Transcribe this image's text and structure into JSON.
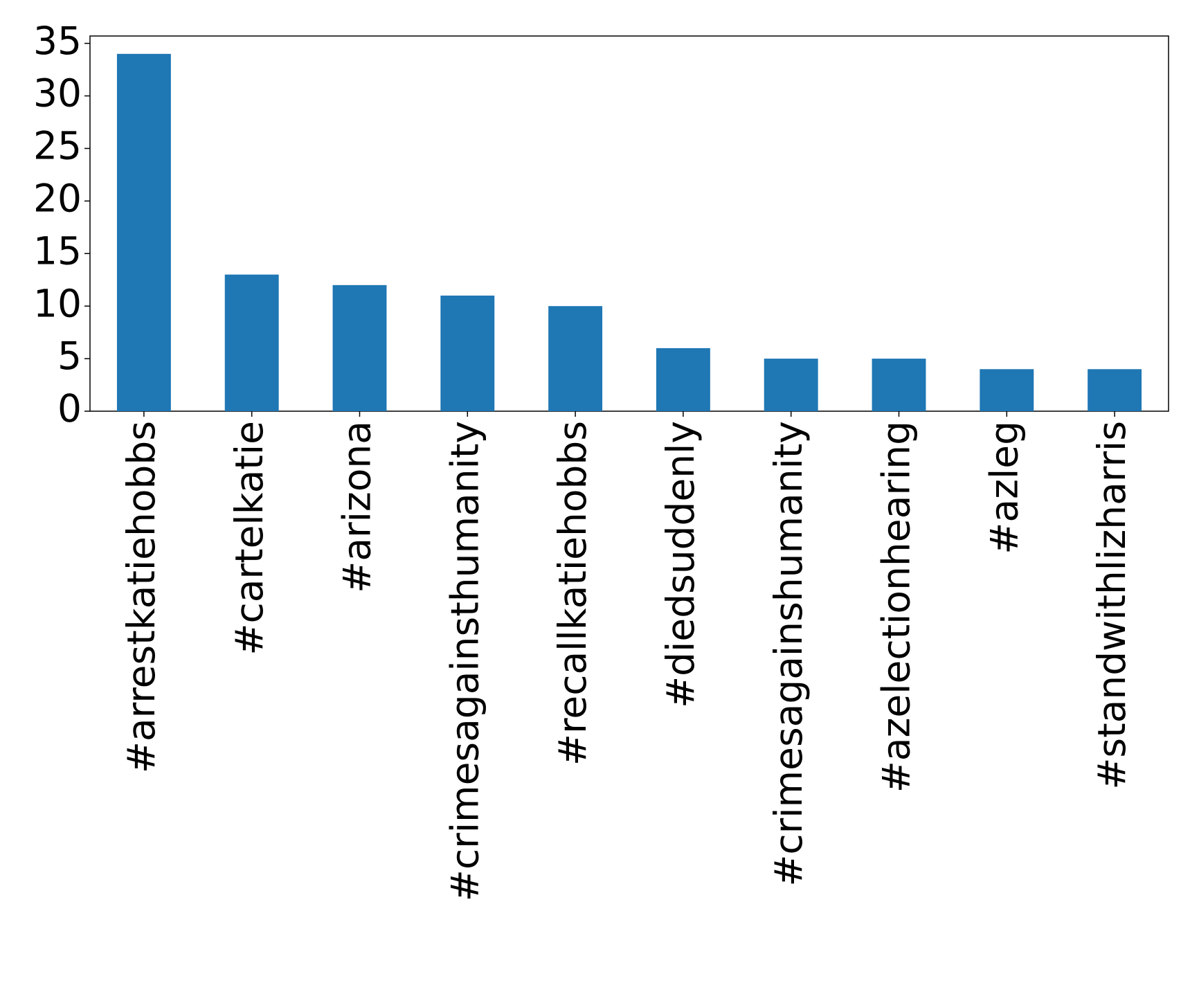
{
  "chart_data": {
    "type": "bar",
    "categories": [
      "#arrestkatiehobbs",
      "#cartelkatie",
      "#arizona",
      "#crimesagainsthumanity",
      "#recallkatiehobbs",
      "#diedsuddenly",
      "#crimesagainshumanity",
      "#azelectionhearing",
      "#azleg",
      "#standwithlizharris"
    ],
    "values": [
      34,
      13,
      12,
      11,
      10,
      6,
      5,
      5,
      4,
      4
    ],
    "color": "#1f77b4",
    "ylim": [
      0,
      35.7
    ],
    "yticks": [
      0,
      5,
      10,
      15,
      20,
      25,
      30,
      35
    ],
    "grid": false
  }
}
